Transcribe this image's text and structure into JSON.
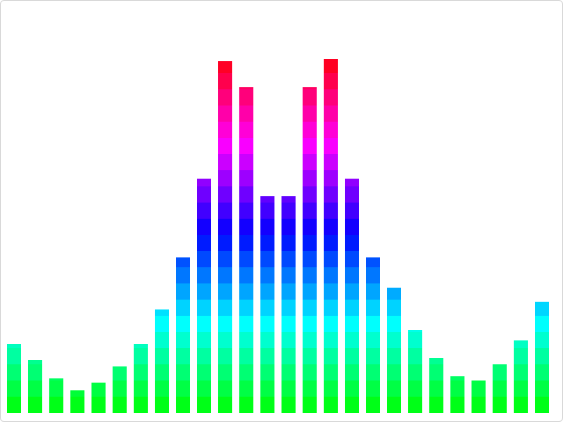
{
  "chart_data": {
    "type": "segmented_bar",
    "values": [
      98,
      75,
      49,
      32,
      43,
      66,
      98,
      147,
      221,
      333,
      500,
      463,
      308,
      308,
      463,
      503,
      333,
      221,
      178,
      118,
      78,
      52,
      46,
      69,
      103,
      158
    ],
    "ylim": [
      0,
      510
    ],
    "color_stops": [
      "#00ff00",
      "#00ffff",
      "#0000ff",
      "#ff00ff",
      "#ff0000"
    ]
  }
}
